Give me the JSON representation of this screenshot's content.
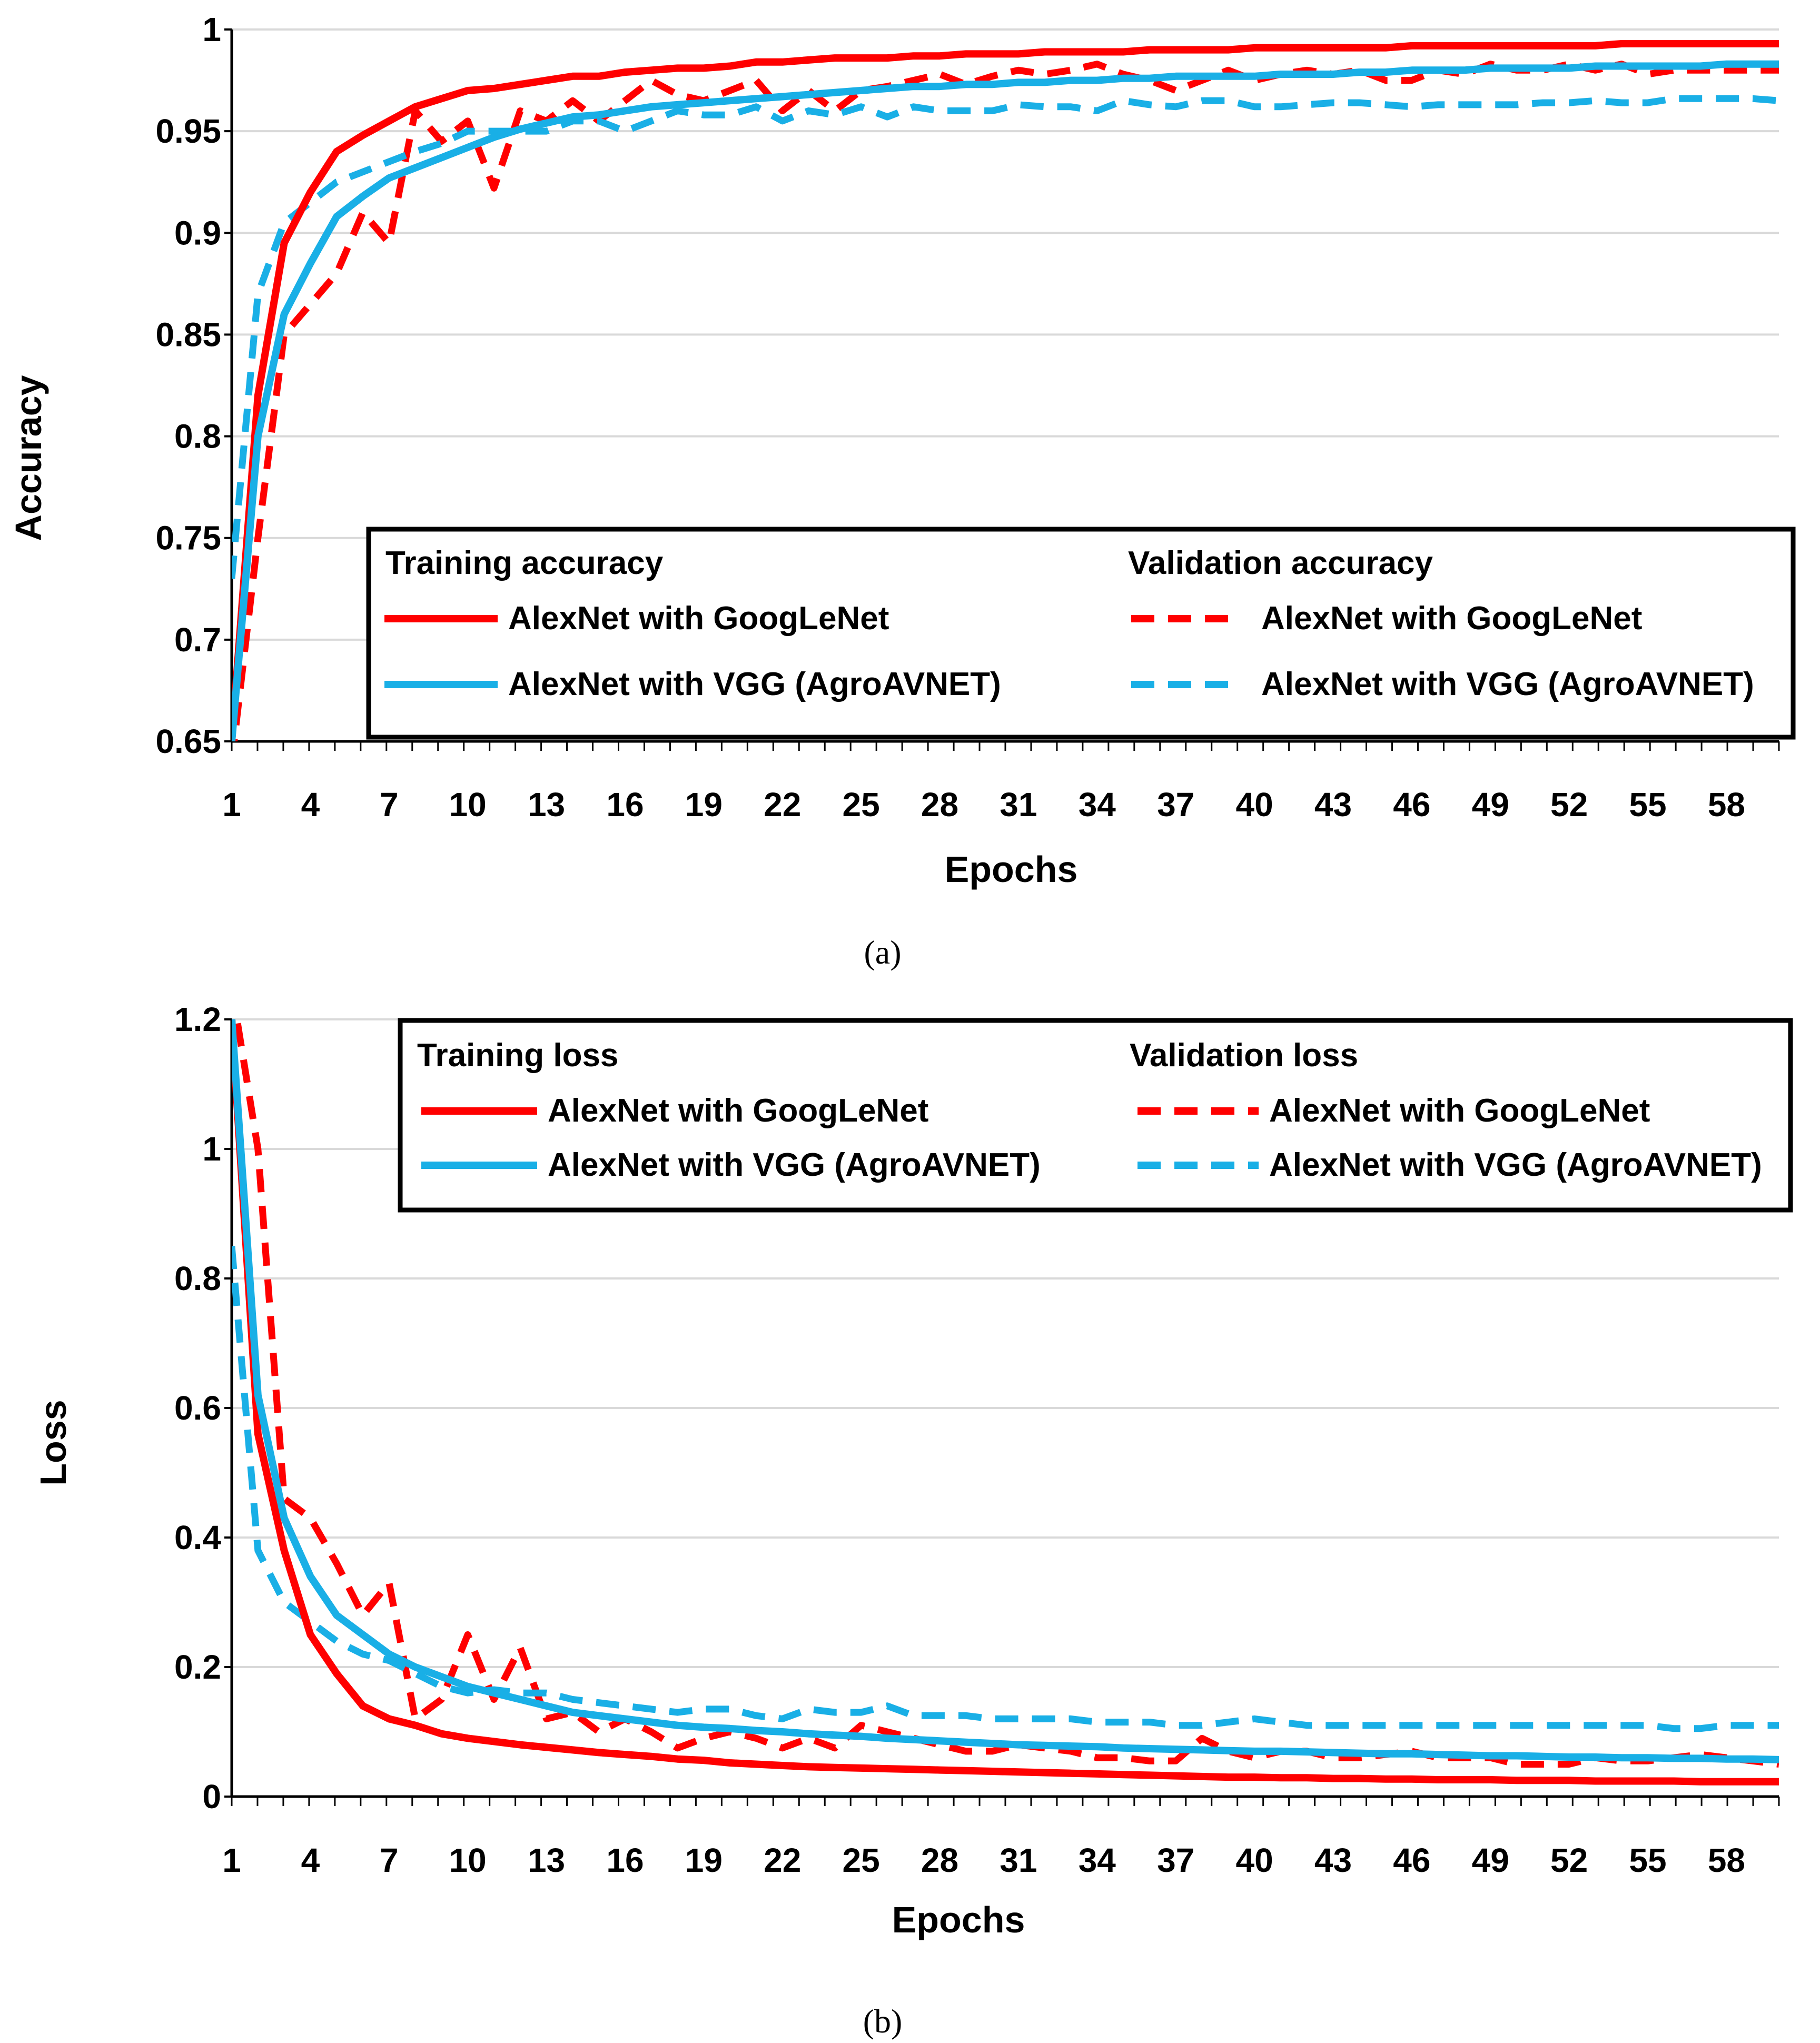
{
  "chart_data": [
    {
      "type": "line",
      "panel_label": "(a)",
      "xlabel": "Epochs",
      "ylabel": "Accuracy",
      "xlim": [
        1,
        60
      ],
      "ylim": [
        0.65,
        1
      ],
      "y_ticks": [
        "0.65",
        "0.7",
        "0.75",
        "0.8",
        "0.85",
        "0.9",
        "0.95",
        "1"
      ],
      "x_ticks": [
        "1",
        "4",
        "7",
        "10",
        "13",
        "16",
        "19",
        "22",
        "25",
        "28",
        "31",
        "34",
        "37",
        "40",
        "43",
        "46",
        "49",
        "52",
        "55",
        "58"
      ],
      "grid": true,
      "legend_position": "bottom-right",
      "legend_group_titles": {
        "training": "Training accuracy",
        "validation": "Validation accuracy"
      },
      "colors": {
        "googlenet": "#ff0000",
        "vgg": "#19afe6"
      },
      "x": [
        1,
        2,
        3,
        4,
        5,
        6,
        7,
        8,
        9,
        10,
        11,
        12,
        13,
        14,
        15,
        16,
        17,
        18,
        19,
        20,
        21,
        22,
        23,
        24,
        25,
        26,
        27,
        28,
        29,
        30,
        31,
        32,
        33,
        34,
        35,
        36,
        37,
        38,
        39,
        40,
        41,
        42,
        43,
        44,
        45,
        46,
        47,
        48,
        49,
        50,
        51,
        52,
        53,
        54,
        55,
        56,
        57,
        58,
        59,
        60
      ],
      "series": [
        {
          "name": "AlexNet with GoogLeNet",
          "group": "training",
          "style": "solid",
          "color": "#ff0000",
          "values": [
            0.65,
            0.82,
            0.895,
            0.92,
            0.94,
            0.948,
            0.955,
            0.962,
            0.966,
            0.97,
            0.971,
            0.973,
            0.975,
            0.977,
            0.977,
            0.979,
            0.98,
            0.981,
            0.981,
            0.982,
            0.984,
            0.984,
            0.985,
            0.986,
            0.986,
            0.986,
            0.987,
            0.987,
            0.988,
            0.988,
            0.988,
            0.989,
            0.989,
            0.989,
            0.989,
            0.99,
            0.99,
            0.99,
            0.99,
            0.991,
            0.991,
            0.991,
            0.991,
            0.991,
            0.991,
            0.992,
            0.992,
            0.992,
            0.992,
            0.992,
            0.992,
            0.992,
            0.992,
            0.993,
            0.993,
            0.993,
            0.993,
            0.993,
            0.993,
            0.993
          ]
        },
        {
          "name": "AlexNet with VGG (AgroAVNET)",
          "group": "training",
          "style": "solid",
          "color": "#19afe6",
          "values": [
            0.65,
            0.8,
            0.86,
            0.885,
            0.908,
            0.918,
            0.927,
            0.932,
            0.937,
            0.942,
            0.947,
            0.951,
            0.954,
            0.957,
            0.958,
            0.96,
            0.962,
            0.963,
            0.964,
            0.965,
            0.966,
            0.967,
            0.968,
            0.969,
            0.97,
            0.971,
            0.972,
            0.972,
            0.973,
            0.973,
            0.974,
            0.974,
            0.975,
            0.975,
            0.976,
            0.976,
            0.977,
            0.977,
            0.977,
            0.977,
            0.978,
            0.978,
            0.978,
            0.979,
            0.979,
            0.98,
            0.98,
            0.98,
            0.981,
            0.981,
            0.981,
            0.981,
            0.982,
            0.982,
            0.982,
            0.982,
            0.982,
            0.983,
            0.983,
            0.983
          ]
        },
        {
          "name": "AlexNet with GoogLeNet",
          "group": "validation",
          "style": "dashed",
          "color": "#ff0000",
          "values": [
            0.64,
            0.75,
            0.85,
            0.865,
            0.88,
            0.91,
            0.895,
            0.96,
            0.945,
            0.955,
            0.922,
            0.96,
            0.955,
            0.965,
            0.955,
            0.965,
            0.975,
            0.968,
            0.965,
            0.97,
            0.975,
            0.96,
            0.97,
            0.96,
            0.97,
            0.972,
            0.975,
            0.978,
            0.973,
            0.977,
            0.98,
            0.978,
            0.98,
            0.983,
            0.978,
            0.975,
            0.97,
            0.975,
            0.98,
            0.975,
            0.978,
            0.98,
            0.978,
            0.98,
            0.975,
            0.975,
            0.98,
            0.978,
            0.983,
            0.98,
            0.98,
            0.983,
            0.98,
            0.983,
            0.978,
            0.98,
            0.98,
            0.98,
            0.98,
            0.98
          ]
        },
        {
          "name": "AlexNet with VGG (AgroAVNET)",
          "group": "validation",
          "style": "dashed",
          "color": "#19afe6",
          "values": [
            0.73,
            0.87,
            0.905,
            0.915,
            0.925,
            0.93,
            0.935,
            0.94,
            0.944,
            0.95,
            0.95,
            0.95,
            0.95,
            0.955,
            0.955,
            0.95,
            0.955,
            0.96,
            0.958,
            0.958,
            0.962,
            0.955,
            0.96,
            0.958,
            0.962,
            0.957,
            0.962,
            0.96,
            0.96,
            0.96,
            0.963,
            0.962,
            0.962,
            0.96,
            0.965,
            0.963,
            0.962,
            0.965,
            0.965,
            0.962,
            0.962,
            0.963,
            0.964,
            0.964,
            0.963,
            0.962,
            0.963,
            0.963,
            0.963,
            0.963,
            0.964,
            0.964,
            0.965,
            0.964,
            0.964,
            0.966,
            0.966,
            0.966,
            0.966,
            0.965
          ]
        }
      ]
    },
    {
      "type": "line",
      "panel_label": "(b)",
      "xlabel": "Epochs",
      "ylabel": "Loss",
      "xlim": [
        1,
        60
      ],
      "ylim": [
        0,
        1.2
      ],
      "y_ticks": [
        "0",
        "0.2",
        "0.4",
        "0.6",
        "0.8",
        "1",
        "1.2"
      ],
      "x_ticks": [
        "1",
        "4",
        "7",
        "10",
        "13",
        "16",
        "19",
        "22",
        "25",
        "28",
        "31",
        "34",
        "37",
        "40",
        "43",
        "46",
        "49",
        "52",
        "55",
        "58"
      ],
      "grid": true,
      "legend_position": "top-right",
      "legend_group_titles": {
        "training": "Training loss",
        "validation": "Validation loss"
      },
      "colors": {
        "googlenet": "#ff0000",
        "vgg": "#19afe6"
      },
      "x": [
        1,
        2,
        3,
        4,
        5,
        6,
        7,
        8,
        9,
        10,
        11,
        12,
        13,
        14,
        15,
        16,
        17,
        18,
        19,
        20,
        21,
        22,
        23,
        24,
        25,
        26,
        27,
        28,
        29,
        30,
        31,
        32,
        33,
        34,
        35,
        36,
        37,
        38,
        39,
        40,
        41,
        42,
        43,
        44,
        45,
        46,
        47,
        48,
        49,
        50,
        51,
        52,
        53,
        54,
        55,
        56,
        57,
        58,
        59,
        60
      ],
      "series": [
        {
          "name": "AlexNet with GoogLeNet",
          "group": "training",
          "style": "solid",
          "color": "#ff0000",
          "values": [
            1.2,
            0.56,
            0.38,
            0.25,
            0.19,
            0.14,
            0.12,
            0.11,
            0.097,
            0.09,
            0.085,
            0.08,
            0.076,
            0.072,
            0.068,
            0.065,
            0.062,
            0.058,
            0.056,
            0.052,
            0.05,
            0.048,
            0.046,
            0.045,
            0.044,
            0.043,
            0.042,
            0.041,
            0.04,
            0.039,
            0.038,
            0.037,
            0.036,
            0.035,
            0.034,
            0.033,
            0.032,
            0.031,
            0.03,
            0.03,
            0.029,
            0.029,
            0.028,
            0.028,
            0.027,
            0.027,
            0.026,
            0.026,
            0.026,
            0.025,
            0.025,
            0.025,
            0.024,
            0.024,
            0.024,
            0.024,
            0.023,
            0.023,
            0.023,
            0.023
          ]
        },
        {
          "name": "AlexNet with VGG (AgroAVNET)",
          "group": "training",
          "style": "solid",
          "color": "#19afe6",
          "values": [
            1.2,
            0.62,
            0.43,
            0.34,
            0.28,
            0.25,
            0.22,
            0.2,
            0.185,
            0.17,
            0.16,
            0.15,
            0.14,
            0.13,
            0.125,
            0.12,
            0.115,
            0.11,
            0.107,
            0.105,
            0.102,
            0.1,
            0.097,
            0.095,
            0.093,
            0.09,
            0.088,
            0.086,
            0.084,
            0.082,
            0.08,
            0.079,
            0.078,
            0.077,
            0.075,
            0.074,
            0.073,
            0.072,
            0.071,
            0.07,
            0.07,
            0.069,
            0.068,
            0.067,
            0.066,
            0.066,
            0.065,
            0.064,
            0.063,
            0.063,
            0.062,
            0.061,
            0.061,
            0.06,
            0.06,
            0.059,
            0.059,
            0.058,
            0.058,
            0.057
          ]
        },
        {
          "name": "AlexNet with GoogLeNet",
          "group": "validation",
          "style": "dashed",
          "color": "#ff0000",
          "values": [
            1.25,
            1.0,
            0.46,
            0.43,
            0.36,
            0.28,
            0.33,
            0.12,
            0.15,
            0.25,
            0.15,
            0.23,
            0.12,
            0.13,
            0.1,
            0.12,
            0.1,
            0.075,
            0.09,
            0.1,
            0.09,
            0.075,
            0.09,
            0.075,
            0.11,
            0.1,
            0.09,
            0.08,
            0.07,
            0.07,
            0.08,
            0.075,
            0.07,
            0.06,
            0.06,
            0.055,
            0.055,
            0.09,
            0.07,
            0.06,
            0.07,
            0.07,
            0.06,
            0.06,
            0.065,
            0.07,
            0.06,
            0.06,
            0.06,
            0.05,
            0.05,
            0.05,
            0.06,
            0.055,
            0.055,
            0.06,
            0.065,
            0.06,
            0.055,
            0.05
          ]
        },
        {
          "name": "AlexNet with VGG (AgroAVNET)",
          "group": "validation",
          "style": "dashed",
          "color": "#19afe6",
          "values": [
            0.85,
            0.38,
            0.3,
            0.27,
            0.24,
            0.22,
            0.21,
            0.19,
            0.17,
            0.16,
            0.165,
            0.16,
            0.16,
            0.15,
            0.145,
            0.14,
            0.135,
            0.13,
            0.135,
            0.135,
            0.125,
            0.12,
            0.135,
            0.13,
            0.13,
            0.14,
            0.125,
            0.125,
            0.125,
            0.12,
            0.12,
            0.12,
            0.12,
            0.115,
            0.115,
            0.115,
            0.11,
            0.11,
            0.115,
            0.12,
            0.115,
            0.11,
            0.11,
            0.11,
            0.11,
            0.11,
            0.11,
            0.11,
            0.11,
            0.11,
            0.11,
            0.11,
            0.11,
            0.11,
            0.11,
            0.105,
            0.105,
            0.11,
            0.11,
            0.11
          ]
        }
      ]
    }
  ]
}
